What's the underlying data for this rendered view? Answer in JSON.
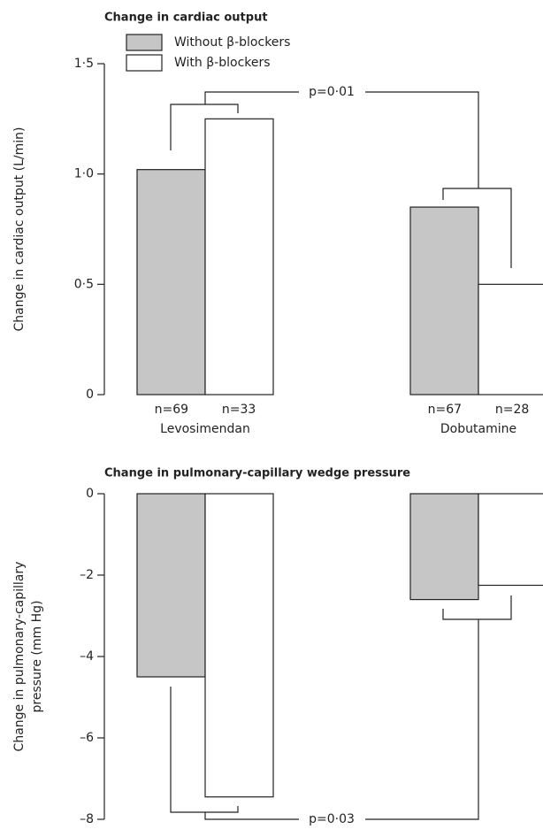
{
  "chart_data": [
    {
      "type": "bar",
      "title": "Change in cardiac output",
      "ylabel": [
        "Change in cardiac output (L/min)"
      ],
      "categories": [
        "Levosimendan",
        "Dobutamine"
      ],
      "series": [
        {
          "name": "Without β-blockers",
          "color": "#c6c6c6",
          "values": [
            1.02,
            0.85
          ],
          "sample_sizes": [
            "n=69",
            "n=67"
          ]
        },
        {
          "name": "With β-blockers",
          "color": "#ffffff",
          "values": [
            1.25,
            0.5
          ],
          "sample_sizes": [
            "n=33",
            "n=28"
          ]
        }
      ],
      "ylim": [
        0,
        1.5
      ],
      "yticks": [
        0,
        {
          "value": 0.5,
          "label": "0·5"
        },
        {
          "value": 1.0,
          "label": "1·0"
        },
        {
          "value": 1.5,
          "label": "1·5"
        }
      ],
      "legend": "upper left",
      "annotations": [
        "p=0·01"
      ]
    },
    {
      "type": "bar",
      "title": "Change in pulmonary-capillary wedge pressure",
      "ylabel": [
        "Change in pulmonary-capillary",
        "pressure (mm Hg)"
      ],
      "categories": [
        null,
        null
      ],
      "series": [
        {
          "color": "#c6c6c6",
          "values": [
            -4.5,
            -2.6
          ]
        },
        {
          "color": "#ffffff",
          "values": [
            -7.45,
            -2.25
          ]
        }
      ],
      "ylim": [
        -8,
        0
      ],
      "yticks": [
        0,
        {
          "value": -2,
          "label": "–2"
        },
        {
          "value": -4,
          "label": "–4"
        },
        {
          "value": -6,
          "label": "–6"
        },
        {
          "value": -8,
          "label": "–8"
        }
      ],
      "annotations": [
        "p=0·03"
      ]
    }
  ]
}
